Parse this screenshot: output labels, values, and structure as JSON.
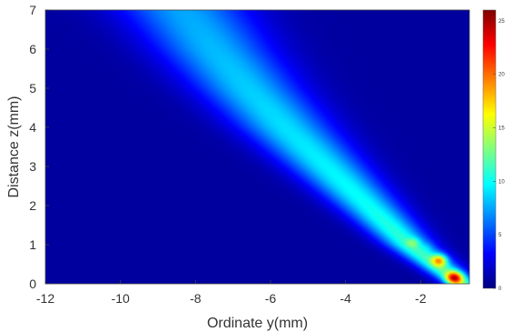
{
  "chart_data": {
    "type": "heatmap",
    "title": "",
    "xlabel": "Ordinate y(mm)",
    "ylabel": "Distance z(mm)",
    "xlim": [
      -12,
      -0.7
    ],
    "ylim": [
      0,
      7
    ],
    "x_ticks": [
      -12,
      -10,
      -8,
      -6,
      -4,
      -2
    ],
    "y_ticks": [
      0,
      1,
      2,
      3,
      4,
      5,
      6,
      7
    ],
    "colorbar": {
      "range": [
        0,
        26
      ],
      "ticks": [
        0,
        5,
        10,
        15,
        20,
        25
      ],
      "colormap": "jet",
      "label": ""
    },
    "grid": false,
    "background_value": 0.8,
    "plume": {
      "description_of_field": "diagonal band running from the bottom-right toward the upper-left",
      "ridge": [
        {
          "z": 0.0,
          "y": -0.9,
          "intensity": 12,
          "width_mm": 0.45
        },
        {
          "z": 1.0,
          "y": -2.3,
          "intensity": 11,
          "width_mm": 0.65
        },
        {
          "z": 2.0,
          "y": -3.4,
          "intensity": 10,
          "width_mm": 0.85
        },
        {
          "z": 3.0,
          "y": -4.5,
          "intensity": 9.5,
          "width_mm": 1.05
        },
        {
          "z": 4.0,
          "y": -5.6,
          "intensity": 9,
          "width_mm": 1.25
        },
        {
          "z": 5.0,
          "y": -6.6,
          "intensity": 8.5,
          "width_mm": 1.4
        },
        {
          "z": 6.0,
          "y": -7.5,
          "intensity": 8,
          "width_mm": 1.55
        },
        {
          "z": 7.0,
          "y": -8.3,
          "intensity": 7.5,
          "width_mm": 1.7
        }
      ],
      "hotspots": [
        {
          "y": -1.1,
          "z": 0.15,
          "value": 25,
          "sigma_y": 0.22,
          "sigma_z": 0.16
        },
        {
          "y": -1.5,
          "z": 0.6,
          "value": 21,
          "sigma_y": 0.2,
          "sigma_z": 0.15
        },
        {
          "y": -2.2,
          "z": 1.05,
          "value": 14,
          "sigma_y": 0.18,
          "sigma_z": 0.12
        },
        {
          "y": -1.8,
          "z": 0.95,
          "value": 12,
          "sigma_y": 0.16,
          "sigma_z": 0.12
        }
      ]
    }
  }
}
